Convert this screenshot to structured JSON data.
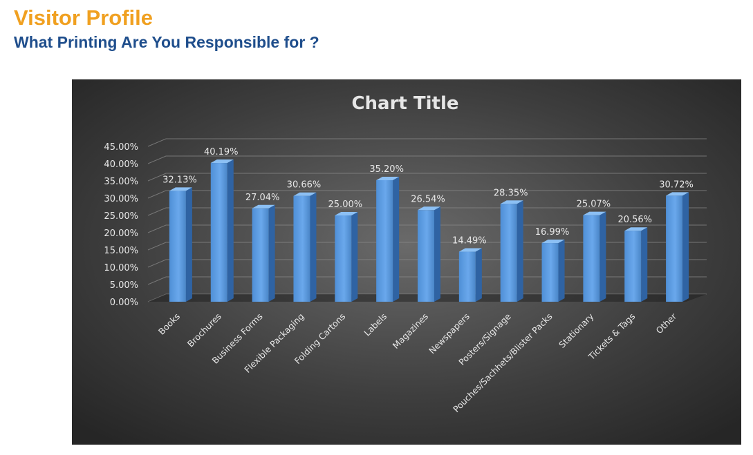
{
  "header": {
    "title": "Visitor Profile",
    "subtitle": "What Printing Are You Responsible for ?"
  },
  "colors": {
    "title": "#f0a020",
    "subtitle": "#1f4e8c",
    "bar": "#5b9be0"
  },
  "chart_data": {
    "type": "bar",
    "title": "Chart Title",
    "xlabel": "",
    "ylabel": "",
    "ylim": [
      0,
      45
    ],
    "y_ticks": [
      "0.00%",
      "5.00%",
      "10.00%",
      "15.00%",
      "20.00%",
      "25.00%",
      "30.00%",
      "35.00%",
      "40.00%",
      "45.00%"
    ],
    "categories": [
      "Books",
      "Brochures",
      "Business Forms",
      "Flexible Packaging",
      "Folding Cartons",
      "Labels",
      "Magazines",
      "Newspapers",
      "Posters/Signage",
      "Pouches/Sachhets/Blister Packs",
      "Stationary",
      "Tickets & Tags",
      "Other"
    ],
    "values": [
      32.13,
      40.19,
      27.04,
      30.66,
      25.0,
      35.2,
      26.54,
      14.49,
      28.35,
      16.99,
      25.07,
      20.56,
      30.72
    ],
    "data_labels": [
      "32.13%",
      "40.19%",
      "27.04%",
      "30.66%",
      "25.00%",
      "35.20%",
      "26.54%",
      "14.49%",
      "28.35%",
      "16.99%",
      "25.07%",
      "20.56%",
      "30.72%"
    ],
    "grid": true,
    "legend": "none",
    "style": "3d-column"
  }
}
